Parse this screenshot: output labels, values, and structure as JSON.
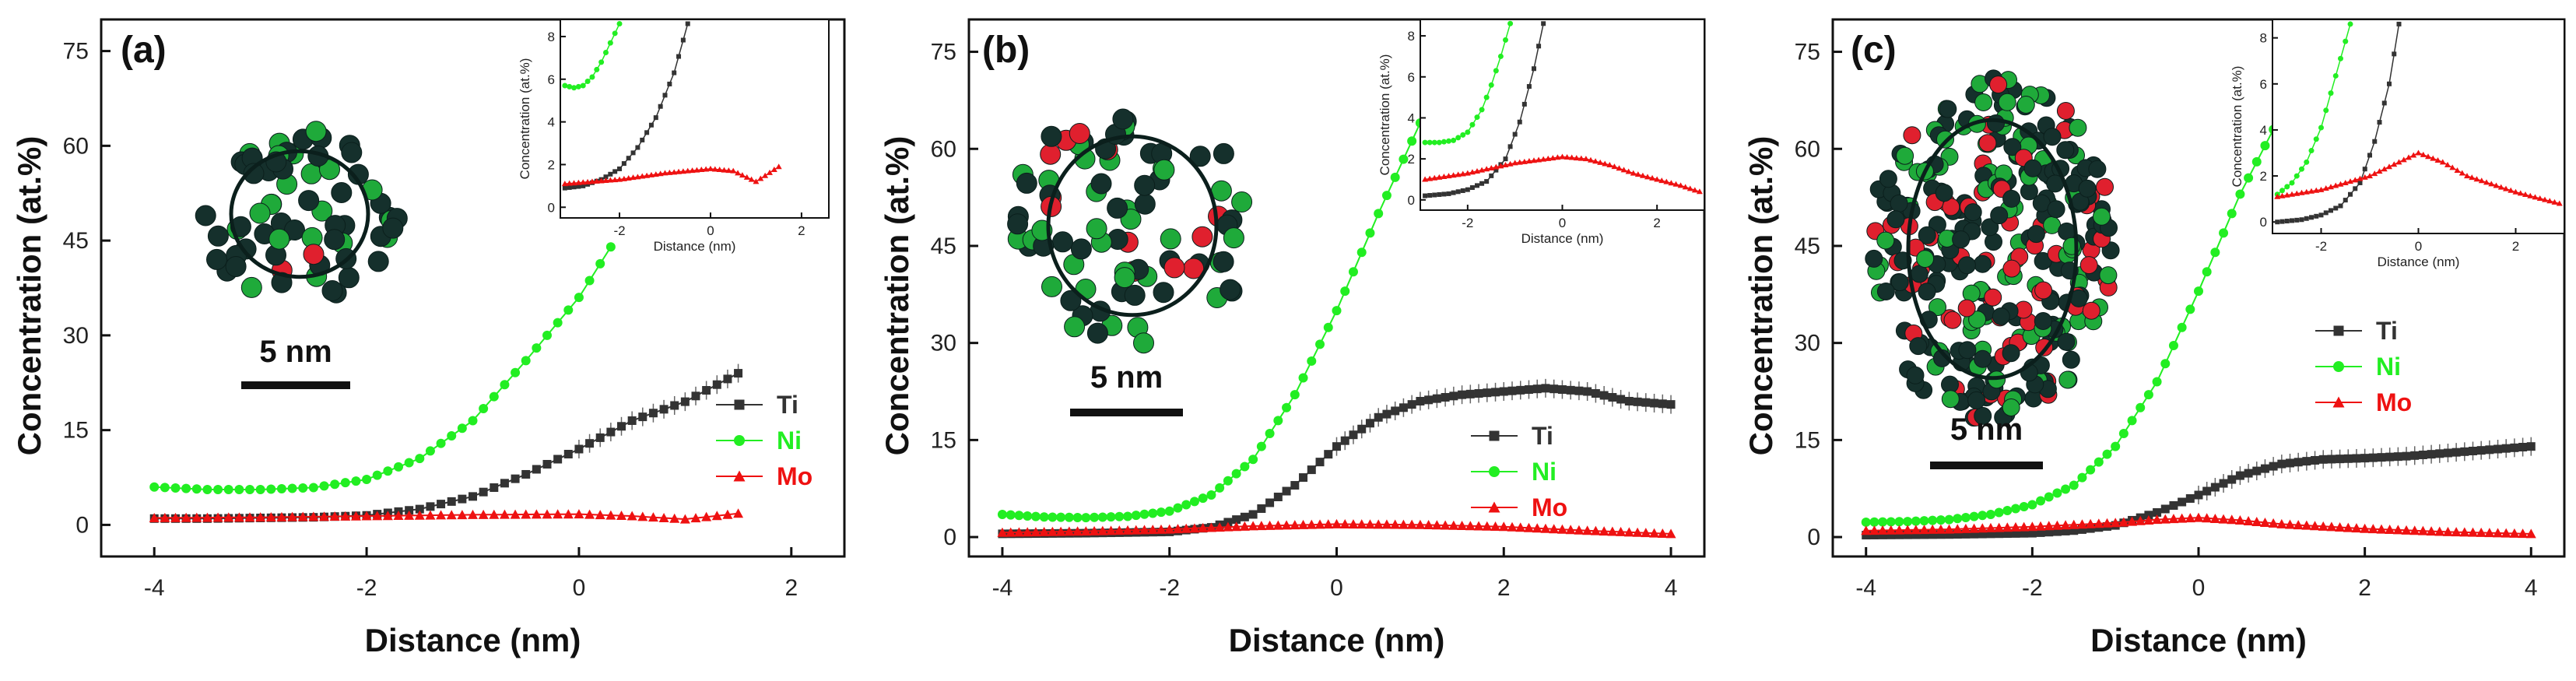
{
  "colors": {
    "Ti": "#333333",
    "Ni": "#22ee22",
    "Mo": "#ee1111",
    "atom_dark": "#15302c",
    "atom_green": "#1faa3a",
    "atom_red": "#e0202e"
  },
  "chart_data": [
    {
      "type": "scatter",
      "panel_label": "(a)",
      "xlabel": "Distance (nm)",
      "ylabel": "Concentration (at.%)",
      "xlim": [
        -4.5,
        2.5
      ],
      "ylim": [
        -5,
        80
      ],
      "xticks": [
        -4,
        -2,
        0,
        2
      ],
      "yticks": [
        0,
        15,
        30,
        45,
        60,
        75
      ],
      "legend": [
        "Ti",
        "Ni",
        "Mo"
      ],
      "scale_bar": "5 nm",
      "series": [
        {
          "name": "Ti",
          "x": [
            -4,
            -3.5,
            -3,
            -2.5,
            -2,
            -1.5,
            -1,
            -0.5,
            0,
            0.5,
            1,
            1.5
          ],
          "y": [
            1,
            1,
            1.1,
            1.2,
            1.5,
            2.5,
            4.5,
            8,
            12,
            16.5,
            19.5,
            24
          ]
        },
        {
          "name": "Ni",
          "x": [
            -4,
            -3.5,
            -3,
            -2.5,
            -2,
            -1.5,
            -1,
            -0.5,
            0,
            0.3
          ],
          "y": [
            6,
            5.6,
            5.6,
            5.9,
            7.2,
            10.5,
            16.5,
            26,
            36,
            44
          ]
        },
        {
          "name": "Mo",
          "x": [
            -4,
            -3,
            -2,
            -1,
            0,
            0.5,
            1,
            1.5
          ],
          "y": [
            1.1,
            1.2,
            1.4,
            1.6,
            1.7,
            1.4,
            0.9,
            1.8
          ]
        }
      ],
      "inset": {
        "xlabel": "Distance (nm)",
        "ylabel": "Concentration (at.%)",
        "xlim": [
          -3.3,
          2.6
        ],
        "ylim": [
          -0.5,
          8.8
        ],
        "xticks": [
          -2,
          0,
          2
        ],
        "yticks": [
          0,
          2,
          4,
          6,
          8
        ],
        "series": [
          {
            "name": "Ti",
            "x": [
              -3.2,
              -2.8,
              -2.4,
              -2,
              -1.6,
              -1.2,
              -0.8,
              -0.5
            ],
            "y": [
              0.9,
              1.0,
              1.3,
              1.8,
              2.8,
              4.2,
              6.3,
              8.6
            ]
          },
          {
            "name": "Ni",
            "x": [
              -3.2,
              -3.0,
              -2.8,
              -2.6,
              -2.4,
              -2.2,
              -2.0
            ],
            "y": [
              5.7,
              5.6,
              5.7,
              6.1,
              6.8,
              7.7,
              8.6
            ]
          },
          {
            "name": "Mo",
            "x": [
              -3.2,
              -2,
              -1,
              0,
              0.5,
              1,
              1.5
            ],
            "y": [
              1.1,
              1.3,
              1.6,
              1.8,
              1.7,
              1.2,
              1.9
            ]
          }
        ]
      }
    },
    {
      "type": "scatter",
      "panel_label": "(b)",
      "xlabel": "Distance (nm)",
      "ylabel": "Concentration (at.%)",
      "xlim": [
        -4.4,
        4.4
      ],
      "ylim": [
        -3,
        80
      ],
      "xticks": [
        -4,
        -2,
        0,
        2,
        4
      ],
      "yticks": [
        0,
        15,
        30,
        45,
        60,
        75
      ],
      "legend": [
        "Ti",
        "Ni",
        "Mo"
      ],
      "scale_bar": "5 nm",
      "series": [
        {
          "name": "Ti",
          "x": [
            -4,
            -3,
            -2,
            -1.5,
            -1,
            -0.5,
            0,
            0.5,
            1,
            1.5,
            2,
            2.5,
            3,
            3.5,
            4
          ],
          "y": [
            0.5,
            0.6,
            0.8,
            1.5,
            3.5,
            8,
            14,
            18.5,
            21,
            22,
            22.5,
            23,
            22.5,
            21,
            20.5
          ]
        },
        {
          "name": "Ni",
          "x": [
            -4,
            -3.5,
            -3,
            -2.5,
            -2,
            -1.5,
            -1,
            -0.5,
            0,
            0.5,
            1,
            1.1
          ],
          "y": [
            3.5,
            3.1,
            3,
            3.2,
            4,
            6.5,
            12,
            22,
            35,
            50,
            64,
            68
          ]
        },
        {
          "name": "Mo",
          "x": [
            -4,
            -3,
            -2,
            -1,
            0,
            1,
            2,
            3,
            4
          ],
          "y": [
            0.7,
            0.9,
            1.2,
            1.7,
            2,
            1.9,
            1.6,
            1.0,
            0.5
          ]
        }
      ],
      "inset": {
        "xlabel": "Distance (nm)",
        "ylabel": "Concentration (at.%)",
        "xlim": [
          -3.0,
          3.0
        ],
        "ylim": [
          -0.5,
          8.8
        ],
        "xticks": [
          -2,
          0,
          2
        ],
        "yticks": [
          0,
          2,
          4,
          6,
          8
        ],
        "series": [
          {
            "name": "Ti",
            "x": [
              -2.9,
              -2.4,
              -2,
              -1.6,
              -1.2,
              -0.9,
              -0.6,
              -0.4
            ],
            "y": [
              0.2,
              0.3,
              0.5,
              0.9,
              2.0,
              3.8,
              6.4,
              8.6
            ]
          },
          {
            "name": "Ni",
            "x": [
              -2.9,
              -2.6,
              -2.3,
              -2,
              -1.7,
              -1.5,
              -1.3,
              -1.1
            ],
            "y": [
              2.8,
              2.8,
              2.9,
              3.3,
              4.4,
              5.6,
              7.0,
              8.6
            ]
          },
          {
            "name": "Mo",
            "x": [
              -2.9,
              -2,
              -1,
              0,
              0.5,
              1,
              1.5,
              2,
              2.5,
              2.9
            ],
            "y": [
              1.0,
              1.3,
              1.8,
              2.1,
              2.0,
              1.7,
              1.3,
              1.0,
              0.7,
              0.4
            ]
          }
        ]
      }
    },
    {
      "type": "scatter",
      "panel_label": "(c)",
      "xlabel": "Distance (nm)",
      "ylabel": "Concentration (at.%)",
      "xlim": [
        -4.4,
        4.4
      ],
      "ylim": [
        -3,
        80
      ],
      "xticks": [
        -4,
        -2,
        0,
        2,
        4
      ],
      "yticks": [
        0,
        15,
        30,
        45,
        60,
        75
      ],
      "legend": [
        "Ti",
        "Ni",
        "Mo"
      ],
      "scale_bar": "5 nm",
      "series": [
        {
          "name": "Ti",
          "x": [
            -4,
            -3,
            -2,
            -1.5,
            -1,
            -0.5,
            0,
            0.5,
            1,
            1.5,
            2,
            2.5,
            3,
            3.5,
            4
          ],
          "y": [
            0.3,
            0.4,
            0.6,
            1.0,
            1.8,
            3.8,
            6.5,
            9.5,
            11.3,
            12,
            12.2,
            12.5,
            13,
            13.5,
            14
          ]
        },
        {
          "name": "Ni",
          "x": [
            -4,
            -3.5,
            -3,
            -2.5,
            -2,
            -1.5,
            -1,
            -0.5,
            0,
            0.5,
            0.9
          ],
          "y": [
            2.3,
            2.4,
            2.7,
            3.5,
            5,
            8,
            14,
            24,
            38,
            53,
            63
          ]
        },
        {
          "name": "Mo",
          "x": [
            -4,
            -3,
            -2,
            -1,
            -0.5,
            0,
            0.5,
            1,
            2,
            3,
            4
          ],
          "y": [
            1.0,
            1.2,
            1.6,
            2.2,
            2.7,
            3.0,
            2.6,
            2.0,
            1.3,
            0.8,
            0.5
          ]
        }
      ],
      "inset": {
        "xlabel": "Distance (nm)",
        "ylabel": "Concentration (at.%)",
        "xlim": [
          -3.0,
          3.0
        ],
        "ylim": [
          -0.5,
          8.8
        ],
        "xticks": [
          -2,
          0,
          2
        ],
        "yticks": [
          0,
          2,
          4,
          6,
          8
        ],
        "series": [
          {
            "name": "Ti",
            "x": [
              -2.9,
              -2.4,
              -2,
              -1.6,
              -1.2,
              -0.9,
              -0.6,
              -0.4
            ],
            "y": [
              0.0,
              0.1,
              0.3,
              0.7,
              1.7,
              3.5,
              6.0,
              8.6
            ]
          },
          {
            "name": "Ni",
            "x": [
              -2.9,
              -2.6,
              -2.3,
              -2,
              -1.8,
              -1.6,
              -1.4
            ],
            "y": [
              1.2,
              1.7,
              2.6,
              4.1,
              5.6,
              7.1,
              8.6
            ]
          },
          {
            "name": "Mo",
            "x": [
              -2.9,
              -2,
              -1,
              -0.5,
              0,
              0.5,
              1,
              2,
              2.9
            ],
            "y": [
              1.1,
              1.4,
              2.0,
              2.5,
              3.0,
              2.6,
              2.0,
              1.3,
              0.8
            ]
          }
        ]
      }
    }
  ]
}
